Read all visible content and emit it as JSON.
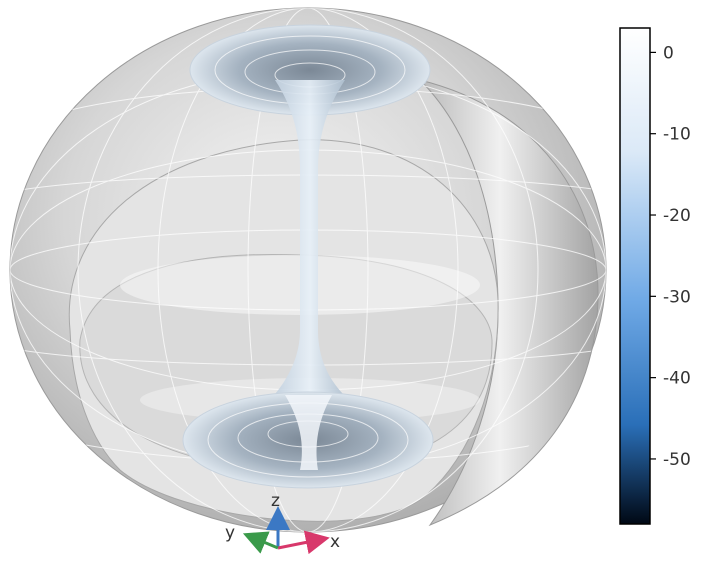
{
  "app": {
    "view": "3D far-field pattern view"
  },
  "colorbar": {
    "range": [
      -58,
      3
    ],
    "ticks": [
      "0",
      "-10",
      "-20",
      "-30",
      "-40",
      "-50"
    ],
    "tick_values": [
      0,
      -10,
      -20,
      -30,
      -40,
      -50
    ],
    "colors": {
      "top": "#ffffff",
      "upper": "#dbe9f7",
      "mid": "#6fa9e6",
      "low": "#2a6fb8",
      "bottom": "#000814"
    }
  },
  "triad": {
    "x_label": "x",
    "y_label": "y",
    "z_label": "z",
    "colors": {
      "x": "#d8386b",
      "y": "#3a9a4a",
      "z": "#3b78c4"
    }
  },
  "icons": {
    "surface": "radiation-pattern-surface",
    "triad": "coordinate-axes-icon"
  }
}
